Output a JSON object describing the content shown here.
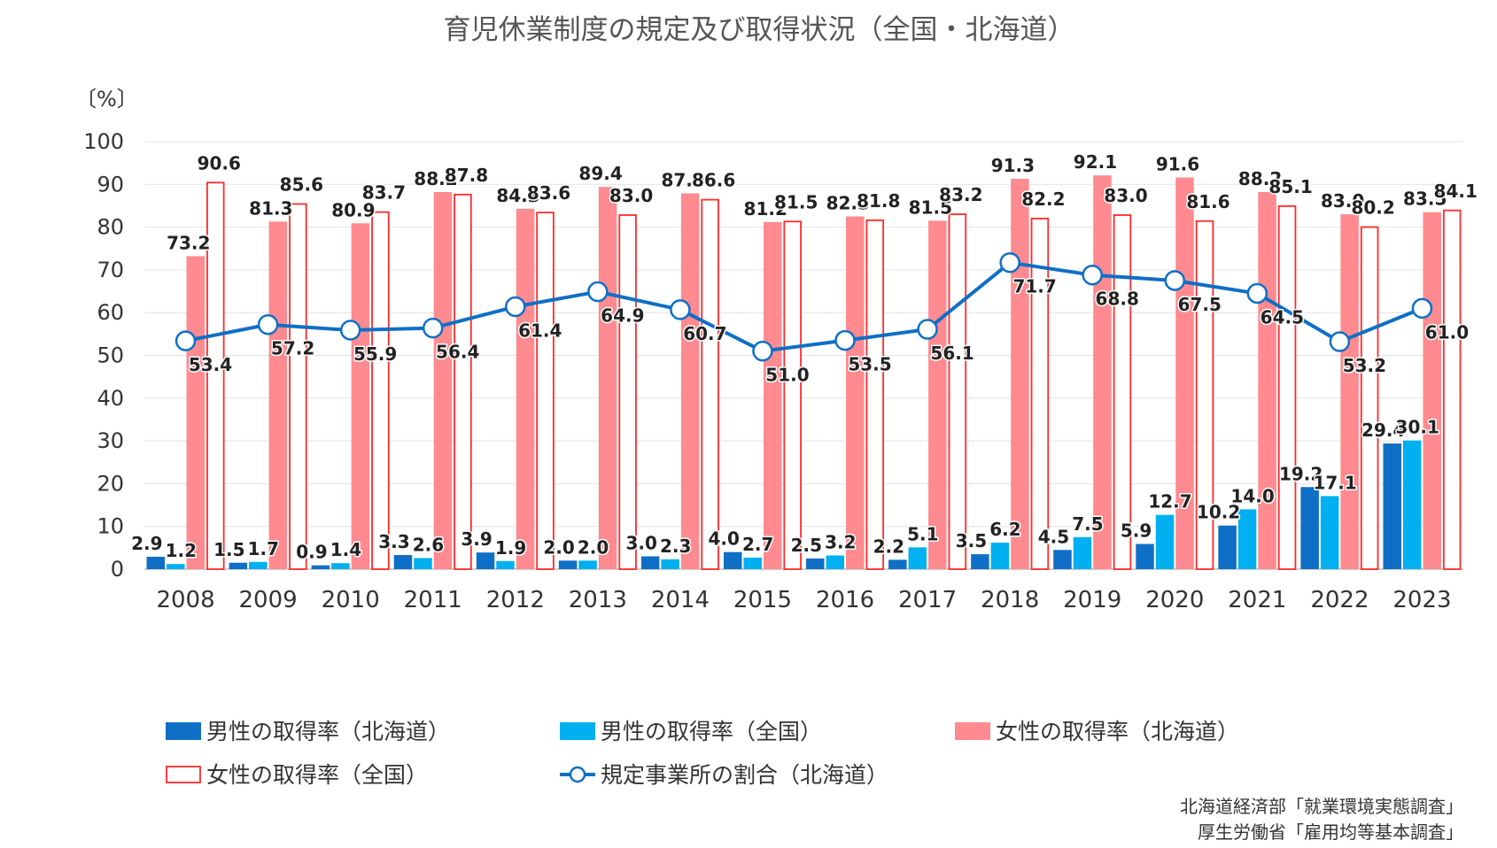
{
  "chart_data": {
    "type": "bar",
    "title": "育児休業制度の規定及び取得状況（全国・北海道）",
    "unit_label": "〔%〕",
    "ylim": [
      0,
      100
    ],
    "yticks": [
      "0",
      "10",
      "20",
      "30",
      "40",
      "50",
      "60",
      "70",
      "80",
      "90",
      "100"
    ],
    "grid": true,
    "legend_position": "bottom",
    "categories": [
      "2008",
      "2009",
      "2010",
      "2011",
      "2012",
      "2013",
      "2014",
      "2015",
      "2016",
      "2017",
      "2018",
      "2019",
      "2020",
      "2021",
      "2022",
      "2023"
    ],
    "series": [
      {
        "name": "男性の取得率（北海道）",
        "type": "bar",
        "color": "#0f6fc6",
        "values": [
          2.9,
          1.5,
          0.9,
          3.3,
          3.9,
          2.0,
          3.0,
          4.0,
          2.5,
          2.2,
          3.5,
          4.5,
          5.9,
          10.2,
          19.2,
          29.4
        ],
        "labels": [
          "2.9",
          "1.5",
          "0.9",
          "3.3",
          "3.9",
          "2.0",
          "3.0",
          "4.0",
          "2.5",
          "2.2",
          "3.5",
          "4.5",
          "5.9",
          "10.2",
          "19.2",
          "29.4"
        ]
      },
      {
        "name": "男性の取得率（全国）",
        "type": "bar",
        "color": "#00b0f0",
        "values": [
          1.2,
          1.7,
          1.4,
          2.6,
          1.9,
          2.0,
          2.3,
          2.7,
          3.2,
          5.1,
          6.2,
          7.5,
          12.7,
          14.0,
          17.1,
          30.1
        ],
        "labels": [
          "1.2",
          "1.7",
          "1.4",
          "2.6",
          "1.9",
          "2.0",
          "2.3",
          "2.7",
          "3.2",
          "5.1",
          "6.2",
          "7.5",
          "12.7",
          "14.0",
          "17.1",
          "30.1"
        ]
      },
      {
        "name": "女性の取得率（北海道）",
        "type": "bar",
        "color": "#ff8a8f",
        "values": [
          73.2,
          81.3,
          80.9,
          88.2,
          84.3,
          89.4,
          87.9,
          81.2,
          82.5,
          81.5,
          91.3,
          92.1,
          91.6,
          88.2,
          83.0,
          83.5
        ],
        "labels": [
          "73.2",
          "81.3",
          "80.9",
          "88.2",
          "84.3",
          "89.4",
          "87.9",
          "81.2",
          "82.5",
          "81.5",
          "91.3",
          "92.1",
          "91.6",
          "88.2",
          "83.0",
          "83.5"
        ]
      },
      {
        "name": "女性の取得率（全国）",
        "type": "bar-outline",
        "color": "#ff2a2a",
        "values": [
          90.6,
          85.6,
          83.7,
          87.8,
          83.6,
          83.0,
          86.6,
          81.5,
          81.8,
          83.2,
          82.2,
          83.0,
          81.6,
          85.1,
          80.2,
          84.1
        ],
        "labels": [
          "90.6",
          "85.6",
          "83.7",
          "87.8",
          "83.6",
          "83.0",
          "86.6",
          "81.5",
          "81.8",
          "83.2",
          "82.2",
          "83.0",
          "81.6",
          "85.1",
          "80.2",
          "84.1"
        ]
      },
      {
        "name": "規定事業所の割合（北海道）",
        "type": "line",
        "color": "#0f6fc6",
        "values": [
          53.4,
          57.2,
          55.9,
          56.4,
          61.4,
          64.9,
          60.7,
          51.0,
          53.5,
          56.1,
          71.7,
          68.8,
          67.5,
          64.5,
          53.2,
          61.0
        ],
        "labels": [
          "53.4",
          "57.2",
          "55.9",
          "56.4",
          "61.4",
          "64.9",
          "60.7",
          "51.0",
          "53.5",
          "56.1",
          "71.7",
          "68.8",
          "67.5",
          "64.5",
          "53.2",
          "61.0"
        ]
      }
    ],
    "source_lines": [
      "北海道経済部「就業環境実態調査」",
      "厚生労働省「雇用均等基本調査」"
    ]
  }
}
